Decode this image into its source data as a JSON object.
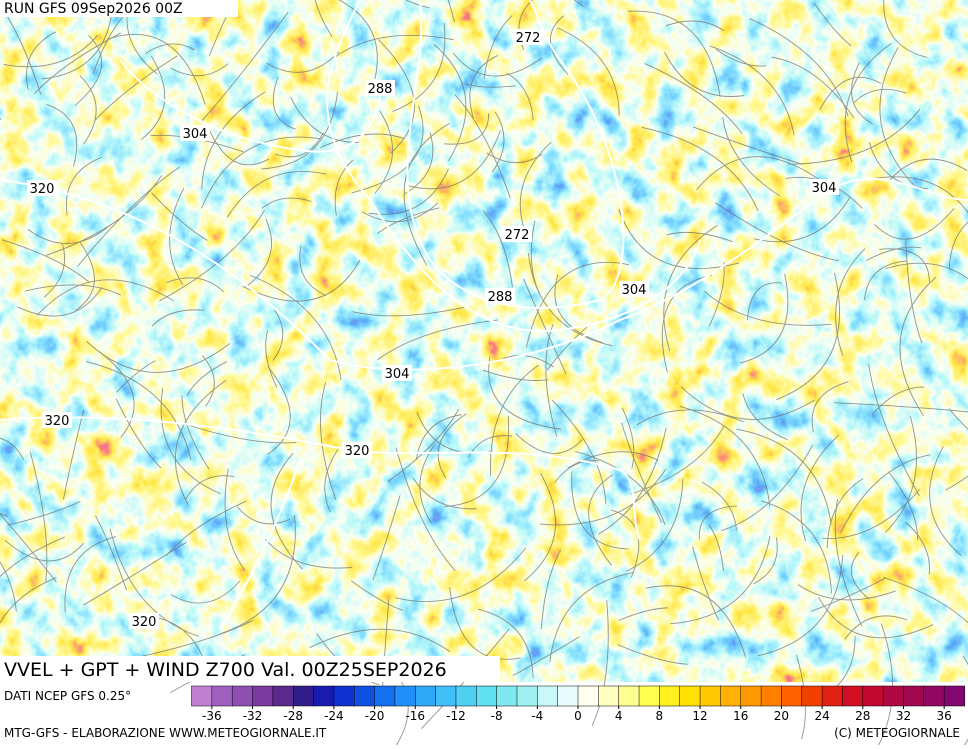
{
  "header": {
    "run": "RUN GFS 09Sep2026 00Z"
  },
  "map": {
    "contour_labels": [
      272,
      288,
      304,
      320,
      272,
      288,
      304,
      304,
      304,
      320,
      320,
      320
    ]
  },
  "title": "VVEL + GPT + WIND Z700 Val. 00Z25SEP2026",
  "colorbar": {
    "source": "DATI NCEP GFS 0.25°",
    "ticks": [
      -36,
      -32,
      -28,
      -24,
      -20,
      -16,
      -12,
      -8,
      -4,
      0,
      4,
      8,
      12,
      16,
      20,
      24,
      28,
      32,
      36
    ],
    "colors": [
      "#c080d0",
      "#a060c0",
      "#9050b0",
      "#7a3aa0",
      "#5a2a90",
      "#301c8a",
      "#1a1ab0",
      "#1030d0",
      "#1050e0",
      "#1570f0",
      "#2090f8",
      "#30a8f8",
      "#40c0f8",
      "#50d0f0",
      "#60e0f0",
      "#80e8f0",
      "#a0f0f0",
      "#c8f8f8",
      "#e8fcfc",
      "#fffff0",
      "#ffffc0",
      "#ffff90",
      "#ffff50",
      "#fff020",
      "#ffe000",
      "#ffc800",
      "#ffb000",
      "#ff9800",
      "#ff8000",
      "#ff6000",
      "#f04000",
      "#e02010",
      "#d01020",
      "#c00830",
      "#b00840",
      "#a00850",
      "#900860",
      "#800870"
    ]
  },
  "footer": {
    "left": "MTG-GFS - ELABORAZIONE WWW.METEOGIORNALE.IT",
    "right": "(C) METEOGIORNALE"
  }
}
